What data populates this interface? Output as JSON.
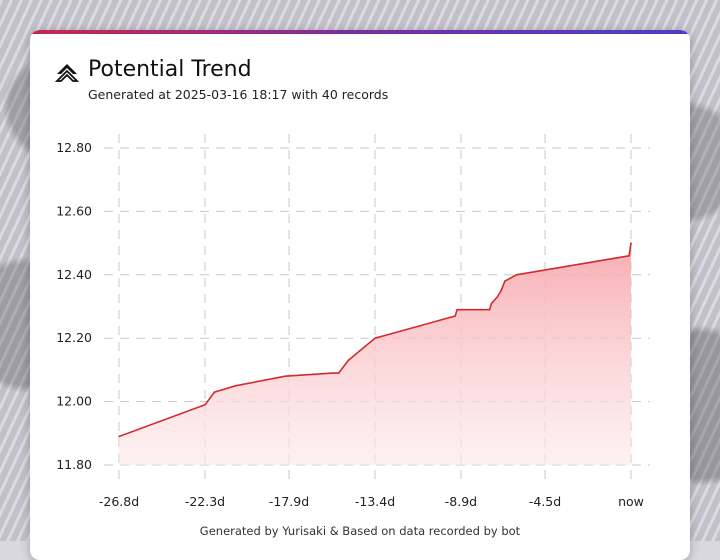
{
  "header": {
    "title": "Potential Trend",
    "subtitle": "Generated at 2025-03-16 18:17 with 40 records",
    "logo_icon": "stacked-chevrons-icon"
  },
  "footer": {
    "text": "Generated by Yurisaki & Based on data recorded by bot"
  },
  "colors": {
    "accent_gradient": [
      "#c8284f",
      "#7a2fa0",
      "#4a3fc4"
    ],
    "line": "#d42a2f",
    "fill_top": "#f7a9ae",
    "grid": "#c8c8c8"
  },
  "chart_data": {
    "type": "area",
    "title": "Potential Trend",
    "xlabel": "",
    "ylabel": "",
    "x_unit": "days ago",
    "xlim": [
      -26.8,
      0
    ],
    "ylim": [
      11.8,
      12.8
    ],
    "x_ticks": [
      -26.8,
      -22.3,
      -17.9,
      -13.4,
      -8.9,
      -4.5,
      0
    ],
    "x_tick_labels": [
      "-26.8d",
      "-22.3d",
      "-17.9d",
      "-13.4d",
      "-8.9d",
      "-4.5d",
      "now"
    ],
    "y_ticks": [
      11.8,
      12.0,
      12.2,
      12.4,
      12.6,
      12.8
    ],
    "y_tick_labels": [
      "11.80",
      "12.00",
      "12.20",
      "12.40",
      "12.60",
      "12.80"
    ],
    "grid": true,
    "legend": "none",
    "series": [
      {
        "points": [
          [
            -26.8,
            11.89
          ],
          [
            -22.3,
            11.99
          ],
          [
            -21.8,
            12.03
          ],
          [
            -20.7,
            12.05
          ],
          [
            -18.1,
            12.08
          ],
          [
            -15.6,
            12.09
          ],
          [
            -15.3,
            12.09
          ],
          [
            -14.8,
            12.13
          ],
          [
            -14.0,
            12.17
          ],
          [
            -13.4,
            12.2
          ],
          [
            -9.2,
            12.27
          ],
          [
            -9.1,
            12.29
          ],
          [
            -7.4,
            12.29
          ],
          [
            -7.3,
            12.31
          ],
          [
            -7.0,
            12.33
          ],
          [
            -6.8,
            12.35
          ],
          [
            -6.6,
            12.38
          ],
          [
            -6.0,
            12.4
          ],
          [
            -0.1,
            12.46
          ],
          [
            0,
            12.5
          ]
        ]
      }
    ]
  }
}
